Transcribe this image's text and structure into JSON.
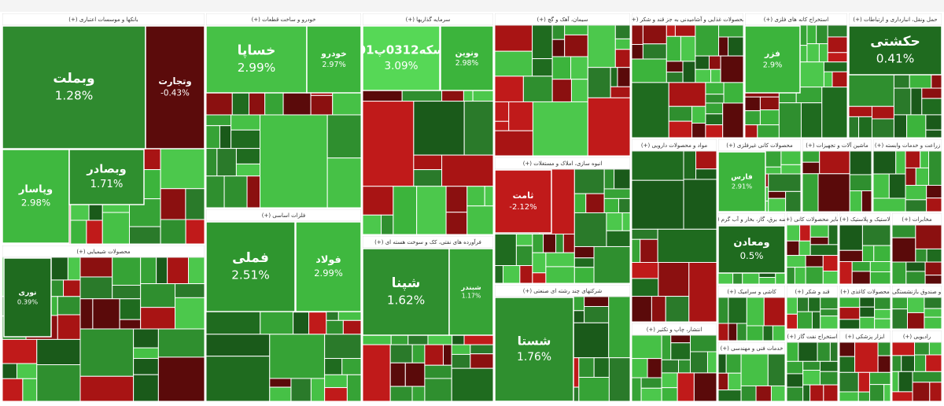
{
  "sectors": [
    {
      "title": "بانکها و موسسات اعتباری (+)",
      "tiles": [
        {
          "name": "وبملت",
          "change": "1.28%",
          "color": "#2f8a2f"
        },
        {
          "name": "وتجارت",
          "change": "-0.43%",
          "color": "#5b0b0b"
        },
        {
          "name": "وپاسار",
          "change": "2.98%",
          "color": "#3fb83f"
        },
        {
          "name": "وبصادر",
          "change": "1.71%",
          "color": "#2f8f2f"
        }
      ]
    },
    {
      "title": "محصولات شیمیایی (+)",
      "tiles": [
        {
          "name": "نوری",
          "change": "0.39%",
          "color": "#1f6b1f"
        }
      ]
    },
    {
      "title": "خودرو و ساخت قطعات (+)",
      "tiles": [
        {
          "name": "خساپا",
          "change": "2.99%",
          "color": "#46c146"
        },
        {
          "name": "خودرو",
          "change": "2.97%",
          "color": "#3cb43c"
        }
      ]
    },
    {
      "title": "فلزات اساسی (+)",
      "tiles": [
        {
          "name": "فملی",
          "change": "2.51%",
          "color": "#2f962f"
        },
        {
          "name": "فولاد",
          "change": "2.99%",
          "color": "#3fb83f"
        }
      ]
    },
    {
      "title": "سرمایه گذاریها (+)",
      "tiles": [
        {
          "name": "سکه0312پ01",
          "change": "3.09%",
          "color": "#56d856"
        },
        {
          "name": "ونوین",
          "change": "2.98%",
          "color": "#3cb43c"
        }
      ]
    },
    {
      "title": "فرآورده های نفتی، کک و سوخت هسته ای (+)",
      "tiles": [
        {
          "name": "شپنا",
          "change": "1.62%",
          "color": "#2f8f2f"
        },
        {
          "name": "شبندر",
          "change": "1.17%",
          "color": "#36a336"
        }
      ]
    },
    {
      "title": "سیمان، آهک و گچ (+)",
      "tiles": []
    },
    {
      "title": "انبوه سازی، املاک و مستغلات (+)",
      "tiles": [
        {
          "name": "ثامت",
          "change": "-2.12%",
          "color": "#c01a1a"
        }
      ]
    },
    {
      "title": "شرکتهای چند رشته ای صنعتی (+)",
      "tiles": [
        {
          "name": "شستا",
          "change": "1.76%",
          "color": "#2f8f2f"
        }
      ]
    },
    {
      "title": "محصولات غذایی و آشامیدنی به جز قند و شکر (+)",
      "tiles": []
    },
    {
      "title": "استخراج کانه های فلزی (+)",
      "tiles": [
        {
          "name": "فزر",
          "change": "2.9%",
          "color": "#3cb43c"
        }
      ]
    },
    {
      "title": "حمل ونقل، انبارداری و ارتباطات (+)",
      "tiles": [
        {
          "name": "حکشتی",
          "change": "0.41%",
          "color": "#1f6b1f"
        }
      ]
    },
    {
      "title": "مواد و محصولات دارویی (+)",
      "tiles": []
    },
    {
      "title": "محصولات کانی غیرفلزی (+)",
      "tiles": [
        {
          "name": "فارس",
          "change": "2.91%",
          "color": "#3cb43c"
        }
      ]
    },
    {
      "title": "ماشین آلات و تجهیزات (+)",
      "tiles": []
    },
    {
      "title": "زراعت و خدمات وابسته (+)",
      "tiles": []
    },
    {
      "title": "عرضه برق، گاز، بخار و آب گرم (+)",
      "tiles": [
        {
          "name": "ومعادن",
          "change": "0.5%",
          "color": "#1f6b1f"
        }
      ]
    },
    {
      "title": "سایر محصولات کانی (+)",
      "tiles": []
    },
    {
      "title": "لاستیک و پلاستیک (+)",
      "tiles": []
    },
    {
      "title": "مخابرات (+)",
      "tiles": []
    },
    {
      "title": "کاشی و سرامیک (+)",
      "tiles": []
    },
    {
      "title": "قند و شکر (+)",
      "tiles": []
    },
    {
      "title": "محصولات کاغذی (+)",
      "tiles": []
    },
    {
      "title": "بیمه و صندوق بازنشستگی (+)",
      "tiles": []
    },
    {
      "title": "خدمات فنی و مهندسی (+)",
      "tiles": []
    },
    {
      "title": "استخراج نفت گاز (+)",
      "tiles": []
    },
    {
      "title": "ابزار پزشکی (+)",
      "tiles": []
    },
    {
      "title": "رادیویی (+)",
      "tiles": []
    },
    {
      "title": "انتشار، چاپ و تکثیر (+)",
      "tiles": []
    }
  ]
}
